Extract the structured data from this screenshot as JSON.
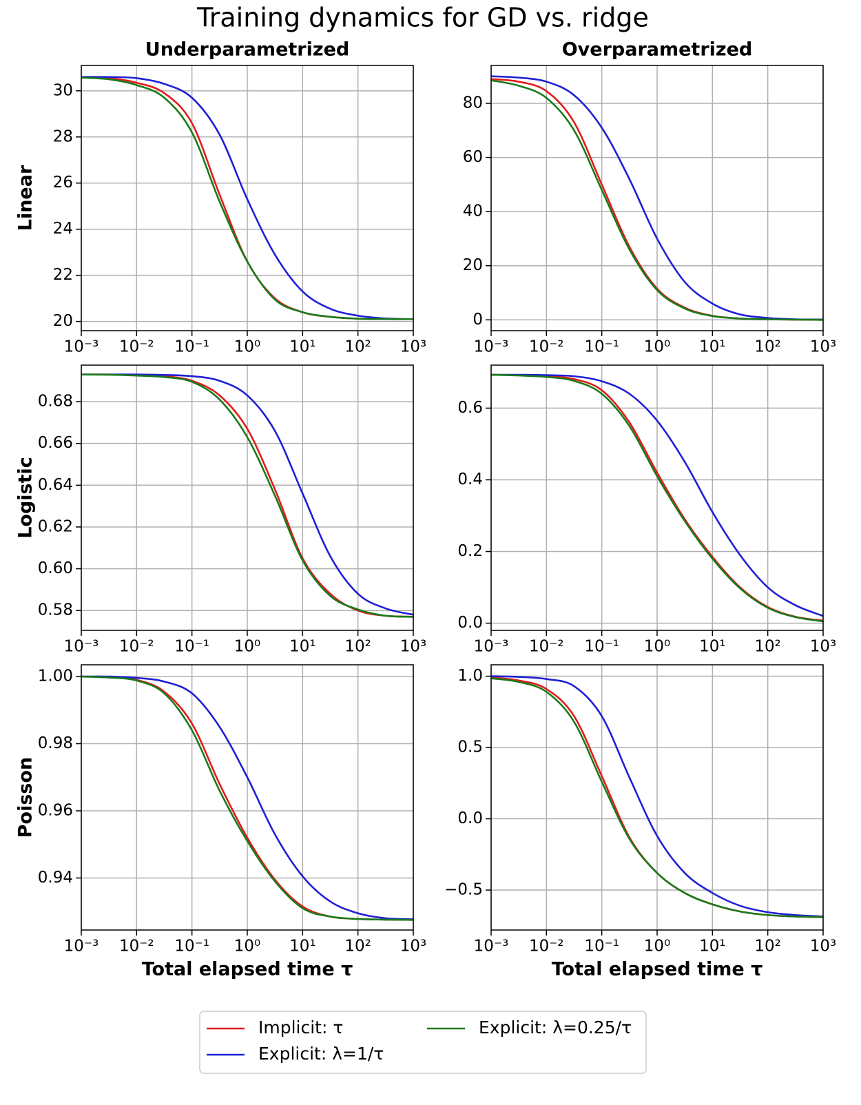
{
  "title": "Training dynamics for GD vs. ridge",
  "chart_data": [
    {
      "type": "line",
      "title": "Underparametrized",
      "ylabel": "Linear",
      "log_x": true,
      "grid": true,
      "x": [
        0.001,
        0.00316,
        0.01,
        0.0316,
        0.1,
        0.316,
        1,
        3.16,
        10,
        31.6,
        100,
        316,
        1000
      ],
      "xlim": [
        0.001,
        1000
      ],
      "xticks": [
        {
          "value": 0.001,
          "label": "10⁻³"
        },
        {
          "value": 0.01,
          "label": "10⁻²"
        },
        {
          "value": 0.1,
          "label": "10⁻¹"
        },
        {
          "value": 1,
          "label": "10⁰"
        },
        {
          "value": 10,
          "label": "10¹"
        },
        {
          "value": 100,
          "label": "10²"
        },
        {
          "value": 1000,
          "label": "10³"
        }
      ],
      "ylim": [
        19.6,
        31.1
      ],
      "yticks": [
        20,
        22,
        24,
        26,
        28,
        30
      ],
      "series": [
        {
          "name": "Implicit: τ",
          "color": "#e31a1c",
          "values": [
            30.58,
            30.55,
            30.35,
            29.9,
            28.6,
            25.5,
            22.6,
            21.0,
            20.4,
            20.2,
            20.12,
            20.1,
            20.1
          ]
        },
        {
          "name": "Explicit: λ=1/τ",
          "color": "#1f1fd6",
          "values": [
            30.6,
            30.6,
            30.55,
            30.3,
            29.7,
            28.1,
            25.3,
            22.9,
            21.3,
            20.55,
            20.25,
            20.13,
            20.1
          ]
        },
        {
          "name": "Explicit: λ=0.25/τ",
          "color": "#1a7a1a",
          "values": [
            30.57,
            30.5,
            30.25,
            29.7,
            28.2,
            25.2,
            22.6,
            20.95,
            20.4,
            20.2,
            20.12,
            20.1,
            20.1
          ]
        }
      ]
    },
    {
      "type": "line",
      "title": "Overparametrized",
      "log_x": true,
      "grid": true,
      "x": [
        0.001,
        0.00316,
        0.01,
        0.0316,
        0.1,
        0.316,
        1,
        3.16,
        10,
        31.6,
        100,
        316,
        1000
      ],
      "xlim": [
        0.001,
        1000
      ],
      "xticks": [
        {
          "value": 0.001,
          "label": "10⁻³"
        },
        {
          "value": 0.01,
          "label": "10⁻²"
        },
        {
          "value": 0.1,
          "label": "10⁻¹"
        },
        {
          "value": 1,
          "label": "10⁰"
        },
        {
          "value": 10,
          "label": "10¹"
        },
        {
          "value": 100,
          "label": "10²"
        },
        {
          "value": 1000,
          "label": "10³"
        }
      ],
      "ylim": [
        -4,
        94
      ],
      "yticks": [
        0,
        20,
        40,
        60,
        80
      ],
      "series": [
        {
          "color": "#e31a1c",
          "values": [
            89,
            88,
            84.5,
            73,
            50,
            27,
            11.5,
            4.5,
            1.5,
            0.5,
            0.2,
            0.1,
            0
          ]
        },
        {
          "color": "#1f1fd6",
          "values": [
            90,
            89.5,
            88,
            83,
            71,
            52,
            30,
            14,
            6,
            2,
            0.7,
            0.2,
            0.1
          ]
        },
        {
          "color": "#1a7a1a",
          "values": [
            88.5,
            86.5,
            82,
            70,
            48,
            26,
            11,
            4.2,
            1.4,
            0.5,
            0.2,
            0.1,
            0
          ]
        }
      ]
    },
    {
      "type": "line",
      "ylabel": "Logistic",
      "log_x": true,
      "grid": true,
      "x": [
        0.001,
        0.00316,
        0.01,
        0.0316,
        0.1,
        0.316,
        1,
        3.16,
        10,
        31.6,
        100,
        316,
        1000
      ],
      "xlim": [
        0.001,
        1000
      ],
      "xticks": [
        {
          "value": 0.001,
          "label": "10⁻³"
        },
        {
          "value": 0.01,
          "label": "10⁻²"
        },
        {
          "value": 0.1,
          "label": "10⁻¹"
        },
        {
          "value": 1,
          "label": "10⁰"
        },
        {
          "value": 10,
          "label": "10¹"
        },
        {
          "value": 100,
          "label": "10²"
        },
        {
          "value": 1000,
          "label": "10³"
        }
      ],
      "ylim": [
        0.5705,
        0.6975
      ],
      "yticks": [
        0.58,
        {
          "value": 0.6,
          "label": "0.60"
        },
        0.62,
        0.64,
        0.66,
        0.68
      ],
      "series": [
        {
          "color": "#e31a1c",
          "values": [
            0.693,
            0.693,
            0.6928,
            0.6922,
            0.69,
            0.683,
            0.667,
            0.638,
            0.605,
            0.588,
            0.58,
            0.5775,
            0.577
          ]
        },
        {
          "color": "#1f1fd6",
          "values": [
            0.693,
            0.693,
            0.693,
            0.6928,
            0.6922,
            0.69,
            0.683,
            0.666,
            0.636,
            0.606,
            0.588,
            0.581,
            0.578
          ]
        },
        {
          "color": "#1a7a1a",
          "values": [
            0.693,
            0.6929,
            0.6925,
            0.6918,
            0.6895,
            0.681,
            0.663,
            0.635,
            0.604,
            0.587,
            0.5805,
            0.5775,
            0.577
          ]
        }
      ]
    },
    {
      "type": "line",
      "log_x": true,
      "grid": true,
      "x": [
        0.001,
        0.00316,
        0.01,
        0.0316,
        0.1,
        0.316,
        1,
        3.16,
        10,
        31.6,
        100,
        316,
        1000
      ],
      "xlim": [
        0.001,
        1000
      ],
      "xticks": [
        {
          "value": 0.001,
          "label": "10⁻³"
        },
        {
          "value": 0.01,
          "label": "10⁻²"
        },
        {
          "value": 0.1,
          "label": "10⁻¹"
        },
        {
          "value": 1,
          "label": "10⁰"
        },
        {
          "value": 10,
          "label": "10¹"
        },
        {
          "value": 100,
          "label": "10²"
        },
        {
          "value": 1000,
          "label": "10³"
        }
      ],
      "ylim": [
        -0.02,
        0.72
      ],
      "yticks": [
        {
          "value": 0,
          "label": "0.0"
        },
        0.2,
        0.4,
        0.6
      ],
      "series": [
        {
          "color": "#e31a1c",
          "values": [
            0.693,
            0.692,
            0.689,
            0.681,
            0.65,
            0.56,
            0.42,
            0.29,
            0.185,
            0.1,
            0.045,
            0.018,
            0.007
          ]
        },
        {
          "color": "#1f1fd6",
          "values": [
            0.693,
            0.693,
            0.692,
            0.689,
            0.675,
            0.64,
            0.565,
            0.45,
            0.31,
            0.19,
            0.1,
            0.05,
            0.02
          ]
        },
        {
          "color": "#1a7a1a",
          "values": [
            0.693,
            0.691,
            0.687,
            0.676,
            0.64,
            0.55,
            0.41,
            0.285,
            0.18,
            0.097,
            0.043,
            0.017,
            0.005
          ]
        }
      ]
    },
    {
      "type": "line",
      "ylabel": "Poisson",
      "xlabel": "Total elapsed time τ",
      "log_x": true,
      "grid": true,
      "x": [
        0.001,
        0.00316,
        0.01,
        0.0316,
        0.1,
        0.316,
        1,
        3.16,
        10,
        31.6,
        100,
        316,
        1000
      ],
      "xlim": [
        0.001,
        1000
      ],
      "xticks": [
        {
          "value": 0.001,
          "label": "10⁻³"
        },
        {
          "value": 0.01,
          "label": "10⁻²"
        },
        {
          "value": 0.1,
          "label": "10⁻¹"
        },
        {
          "value": 1,
          "label": "10⁰"
        },
        {
          "value": 10,
          "label": "10¹"
        },
        {
          "value": 100,
          "label": "10²"
        },
        {
          "value": 1000,
          "label": "10³"
        }
      ],
      "ylim": [
        0.9245,
        1.0035
      ],
      "yticks": [
        0.94,
        0.96,
        0.98,
        {
          "value": 1,
          "label": "1.00"
        }
      ],
      "series": [
        {
          "color": "#e31a1c",
          "values": [
            1.0,
            0.9998,
            0.999,
            0.9955,
            0.986,
            0.968,
            0.952,
            0.9395,
            0.9315,
            0.9285,
            0.9278,
            0.9276,
            0.9275
          ]
        },
        {
          "color": "#1f1fd6",
          "values": [
            1.0,
            1.0,
            0.9996,
            0.9985,
            0.995,
            0.985,
            0.97,
            0.953,
            0.9405,
            0.933,
            0.9295,
            0.928,
            0.9277
          ]
        },
        {
          "color": "#1a7a1a",
          "values": [
            1.0,
            0.9997,
            0.9988,
            0.995,
            0.984,
            0.966,
            0.951,
            0.939,
            0.931,
            0.9285,
            0.9278,
            0.9276,
            0.9275
          ]
        }
      ]
    },
    {
      "type": "line",
      "xlabel": "Total elapsed time τ",
      "log_x": true,
      "grid": true,
      "x": [
        0.001,
        0.00316,
        0.01,
        0.0316,
        0.1,
        0.316,
        1,
        3.16,
        10,
        31.6,
        100,
        316,
        1000
      ],
      "xlim": [
        0.001,
        1000
      ],
      "xticks": [
        {
          "value": 0.001,
          "label": "10⁻³"
        },
        {
          "value": 0.01,
          "label": "10⁻²"
        },
        {
          "value": 0.1,
          "label": "10⁻¹"
        },
        {
          "value": 1,
          "label": "10⁰"
        },
        {
          "value": 10,
          "label": "10¹"
        },
        {
          "value": 100,
          "label": "10²"
        },
        {
          "value": 1000,
          "label": "10³"
        }
      ],
      "ylim": [
        -0.78,
        1.08
      ],
      "yticks": [
        {
          "value": -0.5,
          "label": "−0.5"
        },
        {
          "value": 0,
          "label": "0.0"
        },
        0.5,
        {
          "value": 1,
          "label": "1.0"
        }
      ],
      "series": [
        {
          "color": "#e31a1c",
          "values": [
            0.99,
            0.97,
            0.91,
            0.72,
            0.3,
            -0.13,
            -0.38,
            -0.52,
            -0.6,
            -0.65,
            -0.675,
            -0.685,
            -0.69
          ]
        },
        {
          "color": "#1f1fd6",
          "values": [
            1.0,
            0.995,
            0.98,
            0.93,
            0.72,
            0.29,
            -0.12,
            -0.38,
            -0.52,
            -0.61,
            -0.655,
            -0.675,
            -0.685
          ]
        },
        {
          "color": "#1a7a1a",
          "values": [
            0.985,
            0.96,
            0.89,
            0.68,
            0.26,
            -0.14,
            -0.38,
            -0.52,
            -0.6,
            -0.65,
            -0.675,
            -0.685,
            -0.69
          ]
        }
      ]
    }
  ]
}
